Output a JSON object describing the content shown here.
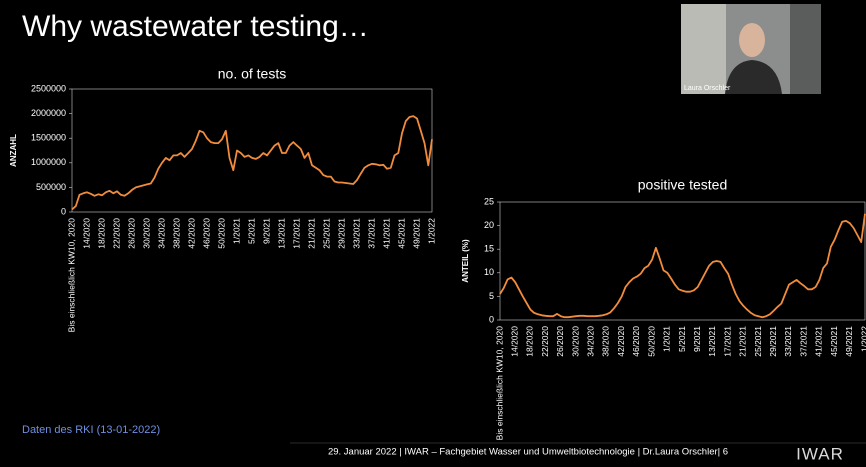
{
  "slide": {
    "title": "Why wastewater testing…",
    "source": "Daten des RKI (13-01-2022)",
    "footer": "29. Januar 2022  |  IWAR – Fachgebiet Wasser und Umweltbiotechnologie  |  Dr.Laura Orschler|  6",
    "logo": "IWAR",
    "speaker": "Laura Orschler"
  },
  "chart_data": [
    {
      "type": "line",
      "title": "no. of tests",
      "y_label": "ANZAHL",
      "color": "#f28c3c",
      "categories": [
        "Bis einschließlich KW10, 2020",
        null,
        null,
        null,
        "14/2020",
        null,
        null,
        null,
        "18/2020",
        null,
        null,
        null,
        "22/2020",
        null,
        null,
        null,
        "26/2020",
        null,
        null,
        null,
        "30/2020",
        null,
        null,
        null,
        "34/2020",
        null,
        null,
        null,
        "38/2020",
        null,
        null,
        null,
        "42/2020",
        null,
        null,
        null,
        "46/2020",
        null,
        null,
        null,
        "50/2020",
        null,
        null,
        null,
        "1/2021",
        null,
        null,
        null,
        "5/2021",
        null,
        null,
        null,
        "9/2021",
        null,
        null,
        null,
        "13/2021",
        null,
        null,
        null,
        "17/2021",
        null,
        null,
        null,
        "21/2021",
        null,
        null,
        null,
        "25/2021",
        null,
        null,
        null,
        "29/2021",
        null,
        null,
        null,
        "33/2021",
        null,
        null,
        null,
        "37/2021",
        null,
        null,
        null,
        "41/2021",
        null,
        null,
        null,
        "45/2021",
        null,
        null,
        null,
        "49/2021",
        null,
        null,
        null,
        "1/2022"
      ],
      "values": [
        50000,
        120000,
        350000,
        380000,
        400000,
        370000,
        330000,
        360000,
        340000,
        400000,
        430000,
        380000,
        420000,
        350000,
        330000,
        380000,
        450000,
        500000,
        520000,
        540000,
        560000,
        580000,
        700000,
        880000,
        1000000,
        1100000,
        1050000,
        1150000,
        1150000,
        1200000,
        1120000,
        1200000,
        1280000,
        1450000,
        1650000,
        1620000,
        1500000,
        1420000,
        1400000,
        1400000,
        1480000,
        1650000,
        1100000,
        850000,
        1250000,
        1200000,
        1120000,
        1150000,
        1100000,
        1080000,
        1120000,
        1200000,
        1150000,
        1250000,
        1350000,
        1400000,
        1200000,
        1200000,
        1350000,
        1420000,
        1350000,
        1280000,
        1100000,
        1200000,
        950000,
        900000,
        850000,
        750000,
        720000,
        720000,
        620000,
        600000,
        600000,
        590000,
        580000,
        570000,
        650000,
        780000,
        900000,
        950000,
        980000,
        970000,
        950000,
        960000,
        880000,
        900000,
        1150000,
        1200000,
        1600000,
        1850000,
        1930000,
        1950000,
        1900000,
        1650000,
        1400000,
        950000,
        1480000
      ],
      "ylim": [
        0,
        2500000
      ],
      "yticks": [
        0,
        500000,
        1000000,
        1500000,
        2000000,
        2500000
      ]
    },
    {
      "type": "line",
      "title": "positive tested",
      "y_label": "ANTEIL (%)",
      "color": "#f28c3c",
      "categories": [
        "Bis einschließlich KW10, 2020",
        null,
        null,
        null,
        "14/2020",
        null,
        null,
        null,
        "18/2020",
        null,
        null,
        null,
        "22/2020",
        null,
        null,
        null,
        "26/2020",
        null,
        null,
        null,
        "30/2020",
        null,
        null,
        null,
        "34/2020",
        null,
        null,
        null,
        "38/2020",
        null,
        null,
        null,
        "42/2020",
        null,
        null,
        null,
        "46/2020",
        null,
        null,
        null,
        "50/2020",
        null,
        null,
        null,
        "1/2021",
        null,
        null,
        null,
        "5/2021",
        null,
        null,
        null,
        "9/2021",
        null,
        null,
        null,
        "13/2021",
        null,
        null,
        null,
        "17/2021",
        null,
        null,
        null,
        "21/2021",
        null,
        null,
        null,
        "25/2021",
        null,
        null,
        null,
        "29/2021",
        null,
        null,
        null,
        "33/2021",
        null,
        null,
        null,
        "37/2021",
        null,
        null,
        null,
        "41/2021",
        null,
        null,
        null,
        "45/2021",
        null,
        null,
        null,
        "49/2021",
        null,
        null,
        null,
        "1/2022"
      ],
      "values": [
        5.5,
        6.8,
        8.6,
        9,
        8,
        6.5,
        5,
        3.6,
        2.2,
        1.5,
        1.2,
        1,
        0.9,
        0.8,
        0.8,
        1.3,
        0.8,
        0.6,
        0.6,
        0.7,
        0.8,
        0.9,
        0.9,
        0.8,
        0.8,
        0.8,
        0.9,
        1,
        1.2,
        1.6,
        2.5,
        3.6,
        5,
        7,
        8,
        8.8,
        9.2,
        9.8,
        11,
        11.5,
        12.8,
        15.3,
        13,
        10.5,
        10,
        8.8,
        7.5,
        6.5,
        6.2,
        6,
        6,
        6.3,
        7,
        8.5,
        10,
        11.5,
        12.3,
        12.5,
        12.3,
        11,
        9.8,
        7.5,
        5.5,
        4,
        3,
        2.2,
        1.5,
        1,
        0.8,
        0.6,
        0.8,
        1.2,
        2,
        2.8,
        3.5,
        5.5,
        7.5,
        8,
        8.5,
        7.8,
        7.2,
        6.5,
        6.5,
        7,
        8.5,
        11,
        12,
        15.5,
        17,
        19,
        20.8,
        21,
        20.5,
        19.5,
        18,
        16.5,
        22.5
      ],
      "ylim": [
        0,
        25
      ],
      "yticks": [
        0,
        5,
        10,
        15,
        20,
        25
      ]
    }
  ]
}
